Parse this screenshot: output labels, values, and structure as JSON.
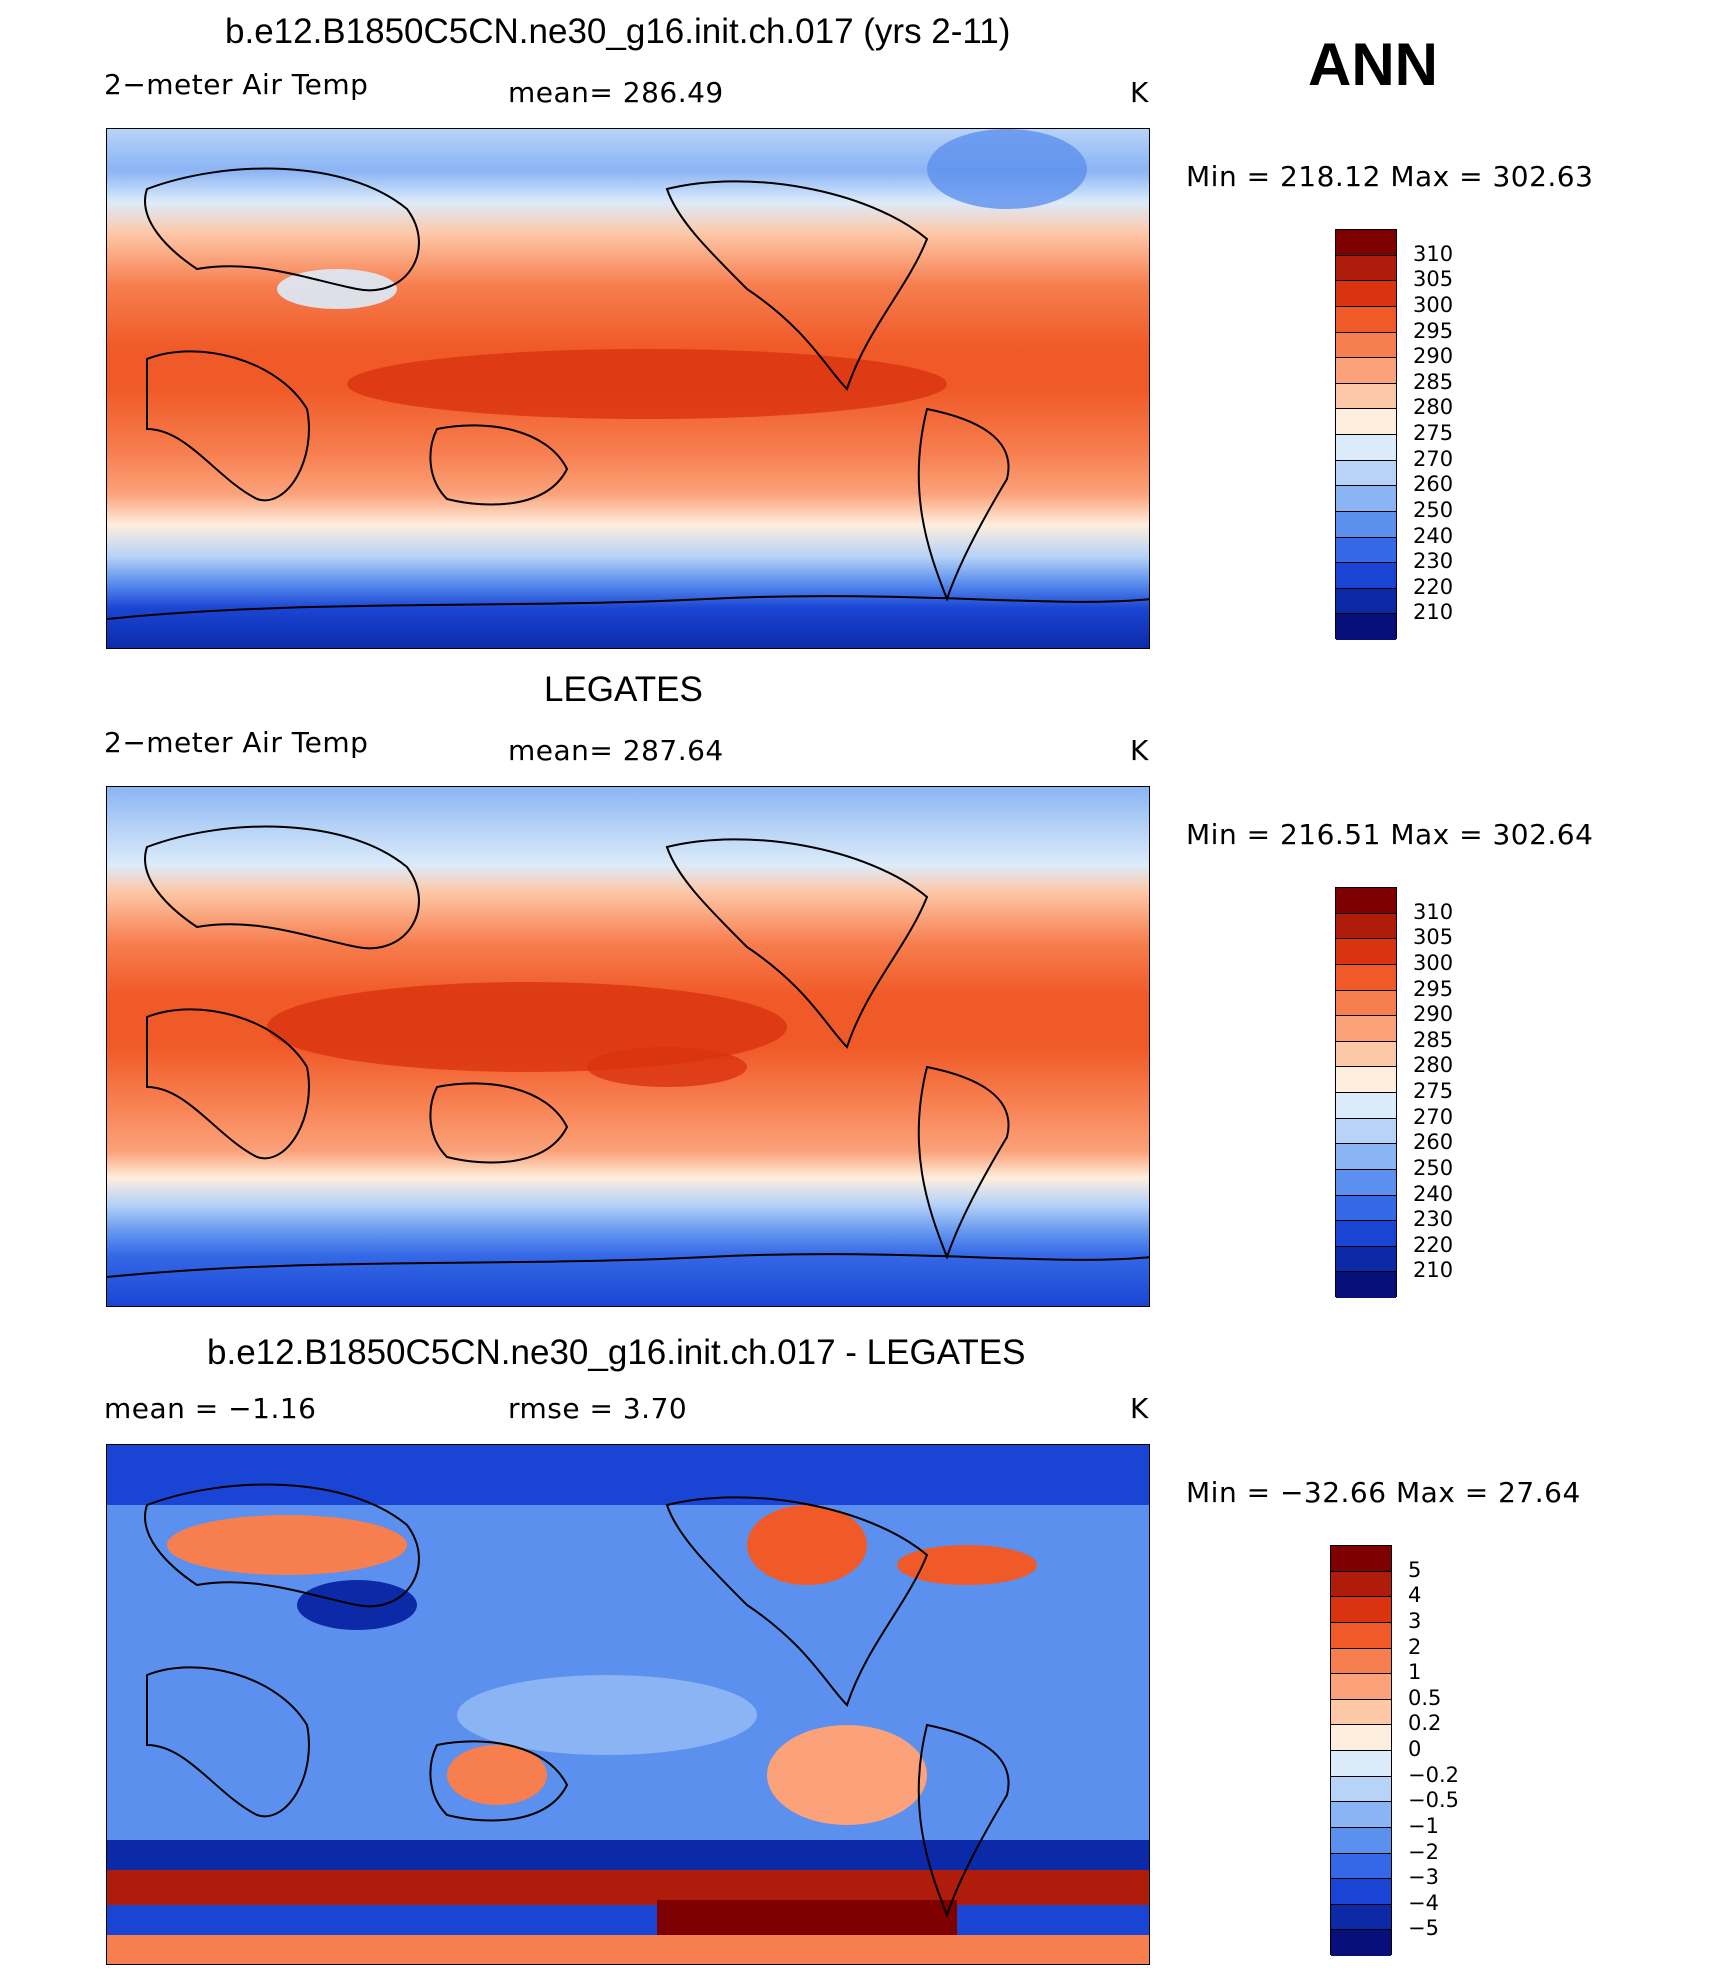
{
  "season": "ANN",
  "units": "K",
  "panels": [
    {
      "title": "b.e12.B1850C5CN.ne30_g16.init.ch.017 (yrs 2-11)",
      "variable": "2−meter Air Temp",
      "stat": "mean=  286.49",
      "minmax": "Min  =  218.12  Max  =  302.63"
    },
    {
      "title": "LEGATES",
      "variable": "2−meter Air Temp",
      "stat": "mean=  287.64",
      "minmax": "Min  =  216.51  Max  =  302.64"
    },
    {
      "title": "b.e12.B1850C5CN.ne30_g16.init.ch.017 - LEGATES",
      "variable": "mean  =   −1.16",
      "stat": "rmse  =    3.70",
      "minmax": "Min  =  −32.66  Max  =   27.64"
    }
  ],
  "colorbars": {
    "absolute": {
      "labels": [
        "310",
        "305",
        "300",
        "295",
        "290",
        "285",
        "280",
        "275",
        "270",
        "260",
        "250",
        "240",
        "230",
        "220",
        "210"
      ],
      "colors": [
        "#7f0000",
        "#b01c0c",
        "#d9330f",
        "#f05a28",
        "#f77e4f",
        "#fba27a",
        "#fdc8a8",
        "#feeedd",
        "#dcebfa",
        "#b7d3f7",
        "#8ab4f4",
        "#5c90ee",
        "#3468e6",
        "#1a45d4",
        "#0c2aa8",
        "#060f7a"
      ]
    },
    "difference": {
      "labels": [
        "5",
        "4",
        "3",
        "2",
        "1",
        "0.5",
        "0.2",
        "0",
        "−0.2",
        "−0.5",
        "−1",
        "−2",
        "−3",
        "−4",
        "−5"
      ],
      "colors": [
        "#7f0000",
        "#b01c0c",
        "#d9330f",
        "#f05a28",
        "#f77e4f",
        "#fba27a",
        "#fdc8a8",
        "#feeedd",
        "#dcebfa",
        "#b7d3f7",
        "#8ab4f4",
        "#5c90ee",
        "#3468e6",
        "#1a45d4",
        "#0c2aa8",
        "#060f7a"
      ]
    }
  }
}
